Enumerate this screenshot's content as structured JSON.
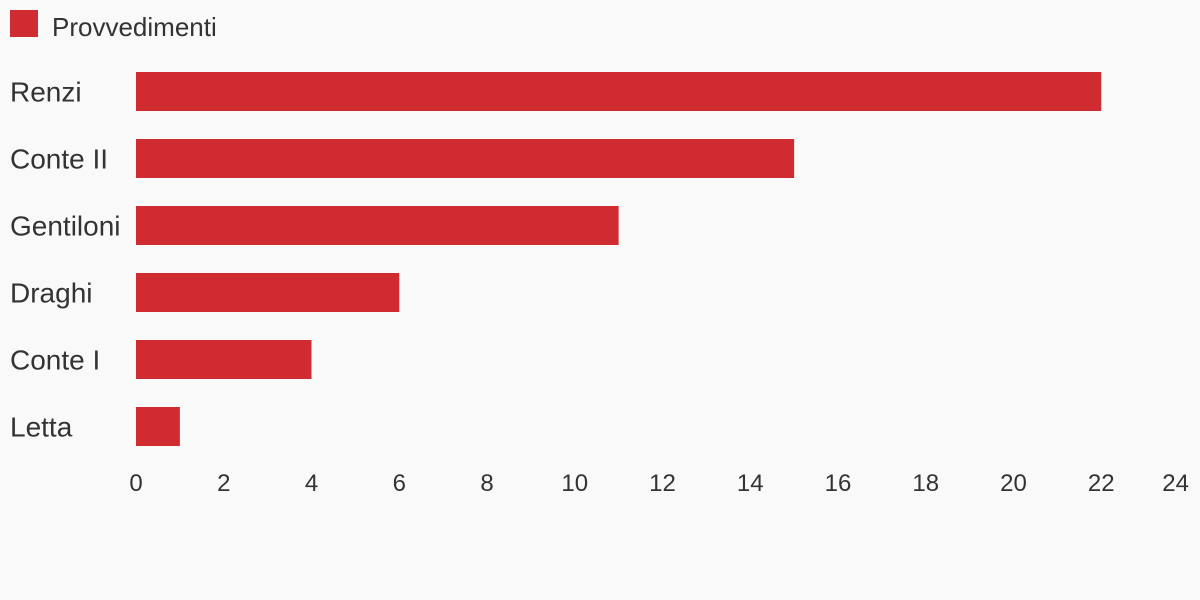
{
  "chart_data": {
    "type": "bar",
    "orientation": "horizontal",
    "categories": [
      "Renzi",
      "Conte II",
      "Gentiloni",
      "Draghi",
      "Conte I",
      "Letta"
    ],
    "series": [
      {
        "name": "Provvedimenti",
        "values": [
          22,
          15,
          11,
          6,
          4,
          1
        ],
        "color": "#d12b32"
      }
    ],
    "xlim": [
      0,
      24
    ],
    "xticks": [
      "0",
      "2",
      "4",
      "6",
      "8",
      "10",
      "12",
      "14",
      "16",
      "18",
      "20",
      "22",
      "24"
    ],
    "grid": false,
    "legend": "top-left",
    "title": "",
    "xlabel": "",
    "ylabel": ""
  }
}
